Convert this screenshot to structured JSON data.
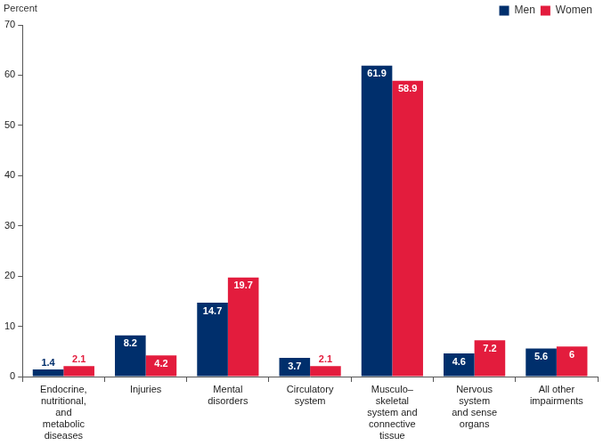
{
  "chart_data": {
    "type": "bar",
    "y_label": "Percent",
    "categories": [
      [
        "Endocrine,",
        "nutritional,",
        "and",
        "metabolic",
        "diseases"
      ],
      [
        "Injuries"
      ],
      [
        "Mental",
        "disorders"
      ],
      [
        "Circulatory",
        "system"
      ],
      [
        "Musculo–",
        "skeletal",
        "system and",
        "connective",
        "tissue"
      ],
      [
        "Nervous",
        "system",
        "and sense",
        "organs"
      ],
      [
        "All other",
        "impairments"
      ]
    ],
    "series": [
      {
        "name": "Men",
        "color": "#002f6c",
        "values": [
          1.4,
          8.2,
          14.7,
          3.7,
          61.9,
          4.6,
          5.6
        ]
      },
      {
        "name": "Women",
        "color": "#e31c3d",
        "values": [
          2.1,
          4.2,
          19.7,
          2.1,
          58.9,
          7.2,
          6.0
        ]
      }
    ],
    "ylim": [
      0,
      70
    ],
    "yticks": [
      0,
      10,
      20,
      30,
      40,
      50,
      60,
      70
    ],
    "grid": false,
    "legend": "top-right",
    "data_labels": true
  }
}
